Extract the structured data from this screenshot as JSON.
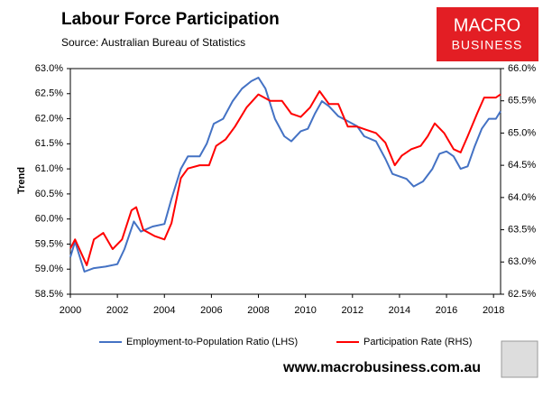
{
  "chart_data": {
    "type": "line",
    "title": "Labour Force Participation",
    "subtitle": "Source: Australian Bureau of Statistics",
    "ylabel": "Trend",
    "logo": {
      "line1": "MACRO",
      "line2": "BUSINESS"
    },
    "footer": "www.macrobusiness.com.au",
    "xlim": [
      2000,
      2018.3
    ],
    "xticks": [
      2000,
      2002,
      2004,
      2006,
      2008,
      2010,
      2012,
      2014,
      2016,
      2018
    ],
    "ylim": [
      58.5,
      63.0
    ],
    "yticks": [
      {
        "value": 58.5,
        "label": "58.5%"
      },
      {
        "value": 59.0,
        "label": "59.0%"
      },
      {
        "value": 59.5,
        "label": "59.5%"
      },
      {
        "value": 60.0,
        "label": "60.0%"
      },
      {
        "value": 60.5,
        "label": "60.5%"
      },
      {
        "value": 61.0,
        "label": "61.0%"
      },
      {
        "value": 61.5,
        "label": "61.5%"
      },
      {
        "value": 62.0,
        "label": "62.0%"
      },
      {
        "value": 62.5,
        "label": "62.5%"
      },
      {
        "value": 63.0,
        "label": "63.0%"
      }
    ],
    "y2lim": [
      62.5,
      66.0
    ],
    "y2ticks": [
      {
        "value": 62.5,
        "label": "62.5%"
      },
      {
        "value": 63.0,
        "label": "63.0%"
      },
      {
        "value": 63.5,
        "label": "63.5%"
      },
      {
        "value": 64.0,
        "label": "64.0%"
      },
      {
        "value": 64.5,
        "label": "64.5%"
      },
      {
        "value": 65.0,
        "label": "65.0%"
      },
      {
        "value": 65.5,
        "label": "65.5%"
      },
      {
        "value": 66.0,
        "label": "66.0%"
      }
    ],
    "series": [
      {
        "name": "Employment-to-Population Ratio (LHS)",
        "color": "#4472c4",
        "axis": "y",
        "x": [
          2000.0,
          2000.2,
          2000.6,
          2001.0,
          2001.5,
          2002.0,
          2002.3,
          2002.7,
          2003.0,
          2003.5,
          2004.0,
          2004.3,
          2004.7,
          2005.0,
          2005.5,
          2005.8,
          2006.1,
          2006.5,
          2006.9,
          2007.3,
          2007.7,
          2008.0,
          2008.3,
          2008.7,
          2009.1,
          2009.4,
          2009.8,
          2010.1,
          2010.4,
          2010.7,
          2011.0,
          2011.4,
          2011.8,
          2012.2,
          2012.5,
          2013.0,
          2013.4,
          2013.7,
          2014.0,
          2014.3,
          2014.6,
          2015.0,
          2015.4,
          2015.7,
          2016.0,
          2016.3,
          2016.6,
          2016.9,
          2017.2,
          2017.5,
          2017.8,
          2018.1,
          2018.3
        ],
        "values": [
          59.24,
          59.55,
          58.95,
          59.02,
          59.05,
          59.1,
          59.4,
          59.95,
          59.75,
          59.85,
          59.9,
          60.4,
          61.0,
          61.25,
          61.25,
          61.5,
          61.9,
          62.0,
          62.35,
          62.6,
          62.75,
          62.82,
          62.6,
          62.0,
          61.65,
          61.55,
          61.75,
          61.8,
          62.1,
          62.35,
          62.25,
          62.05,
          61.95,
          61.85,
          61.65,
          61.55,
          61.2,
          60.9,
          60.85,
          60.8,
          60.65,
          60.75,
          61.0,
          61.3,
          61.35,
          61.25,
          61.0,
          61.05,
          61.45,
          61.8,
          62.0,
          62.0,
          62.15
        ]
      },
      {
        "name": "Participation Rate (RHS)",
        "color": "#ff0000",
        "axis": "y2",
        "x": [
          2000.0,
          2000.2,
          2000.7,
          2001.0,
          2001.4,
          2001.8,
          2002.2,
          2002.6,
          2002.8,
          2003.1,
          2003.6,
          2004.0,
          2004.3,
          2004.7,
          2005.0,
          2005.5,
          2005.9,
          2006.2,
          2006.6,
          2007.0,
          2007.5,
          2008.0,
          2008.5,
          2009.0,
          2009.4,
          2009.8,
          2010.2,
          2010.6,
          2011.0,
          2011.4,
          2011.8,
          2012.2,
          2012.6,
          2013.0,
          2013.4,
          2013.8,
          2014.1,
          2014.5,
          2014.9,
          2015.2,
          2015.5,
          2015.9,
          2016.3,
          2016.6,
          2016.9,
          2017.3,
          2017.6,
          2017.9,
          2018.1,
          2018.3
        ],
        "values": [
          63.21,
          63.35,
          62.95,
          63.35,
          63.45,
          63.2,
          63.35,
          63.8,
          63.85,
          63.5,
          63.4,
          63.35,
          63.6,
          64.3,
          64.45,
          64.5,
          64.5,
          64.8,
          64.9,
          65.1,
          65.4,
          65.6,
          65.5,
          65.5,
          65.3,
          65.25,
          65.4,
          65.65,
          65.45,
          65.45,
          65.1,
          65.1,
          65.05,
          65.0,
          64.85,
          64.5,
          64.65,
          64.75,
          64.8,
          64.95,
          65.15,
          65.0,
          64.75,
          64.7,
          64.95,
          65.3,
          65.55,
          65.55,
          65.55,
          65.6
        ]
      }
    ]
  }
}
